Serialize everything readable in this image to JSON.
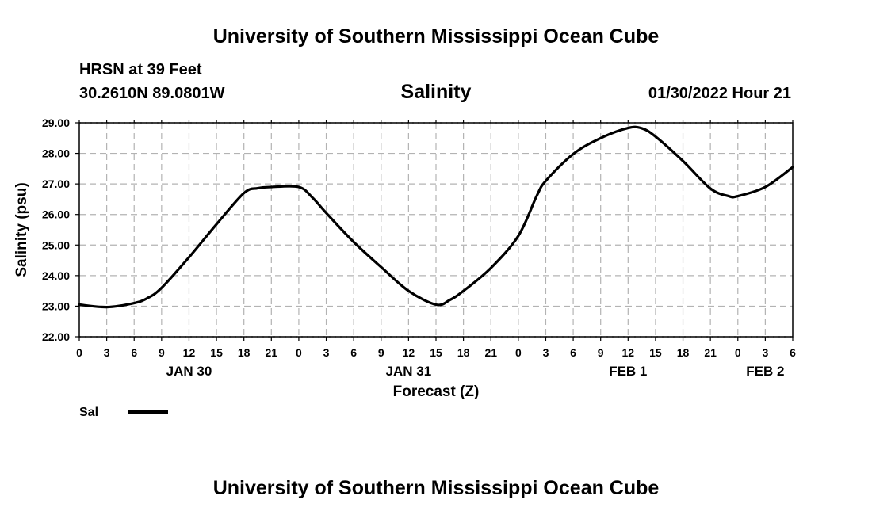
{
  "header": {
    "title": "University of Southern Mississippi Ocean Cube",
    "station": "HRSN at 39 Feet",
    "coordinates": "30.2610N  89.0801W",
    "timestamp": "01/30/2022 Hour 21"
  },
  "footer": {
    "title": "University of Southern Mississippi Ocean Cube"
  },
  "colors": {
    "line": "#000000",
    "grid": "#b3b3b3",
    "background": "#ffffff"
  },
  "chart_data": {
    "type": "line",
    "title": "Salinity",
    "xlabel": "Forecast (Z)",
    "ylabel": "Salinity (psu)",
    "xlim": [
      0,
      78
    ],
    "ylim": [
      22.0,
      29.0
    ],
    "yticks": [
      "22.00",
      "23.00",
      "24.00",
      "25.00",
      "26.00",
      "27.00",
      "28.00",
      "29.00"
    ],
    "xtick_labels": [
      "0",
      "3",
      "6",
      "9",
      "12",
      "15",
      "18",
      "21",
      "0",
      "3",
      "6",
      "9",
      "12",
      "15",
      "18",
      "21",
      "0",
      "3",
      "6",
      "9",
      "12",
      "15",
      "18",
      "21",
      "0",
      "3",
      "6"
    ],
    "date_labels": [
      {
        "label": "JAN 30",
        "x": 12
      },
      {
        "label": "JAN 31",
        "x": 36
      },
      {
        "label": "FEB 1",
        "x": 60
      },
      {
        "label": "FEB 2",
        "x": 75
      }
    ],
    "grid": true,
    "legend": {
      "position": "bottom-left",
      "entries": [
        {
          "name": "Sal"
        }
      ]
    },
    "series": [
      {
        "name": "Sal",
        "x": [
          0,
          3,
          6,
          7.5,
          9,
          12,
          15,
          18,
          19.5,
          21,
          24,
          25.5,
          27,
          30,
          33,
          36,
          39,
          40.5,
          42,
          45,
          48,
          50,
          51,
          54,
          57,
          60,
          61.5,
          63,
          66,
          69,
          71,
          72,
          75,
          78
        ],
        "y": [
          23.05,
          22.97,
          23.1,
          23.27,
          23.6,
          24.6,
          25.68,
          26.7,
          26.86,
          26.9,
          26.9,
          26.55,
          26.05,
          25.1,
          24.28,
          23.5,
          23.05,
          23.2,
          23.5,
          24.25,
          25.3,
          26.6,
          27.1,
          27.98,
          28.5,
          28.83,
          28.82,
          28.55,
          27.75,
          26.85,
          26.6,
          26.6,
          26.9,
          27.55
        ]
      }
    ]
  }
}
